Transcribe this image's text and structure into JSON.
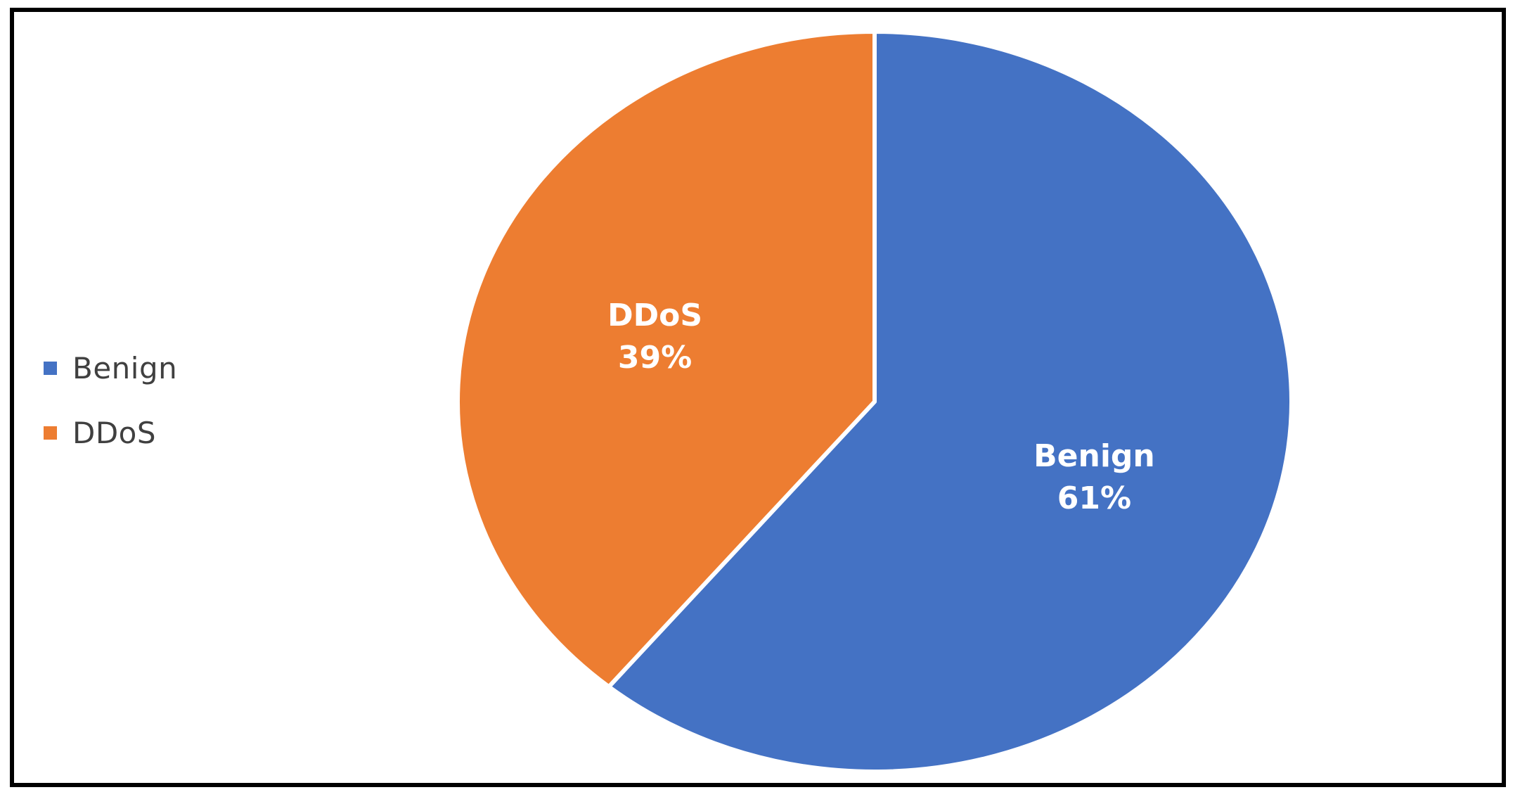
{
  "chart_data": {
    "type": "pie",
    "title": "",
    "categories": [
      "Benign",
      "DDoS"
    ],
    "values": [
      61,
      39
    ],
    "unit": "%",
    "colors": [
      "#4472C4",
      "#ED7D31"
    ],
    "data_labels": [
      {
        "name": "Benign",
        "value": "61%"
      },
      {
        "name": "DDoS",
        "value": "39%"
      }
    ],
    "legend": {
      "position": "left",
      "entries": [
        "Benign",
        "DDoS"
      ]
    }
  }
}
